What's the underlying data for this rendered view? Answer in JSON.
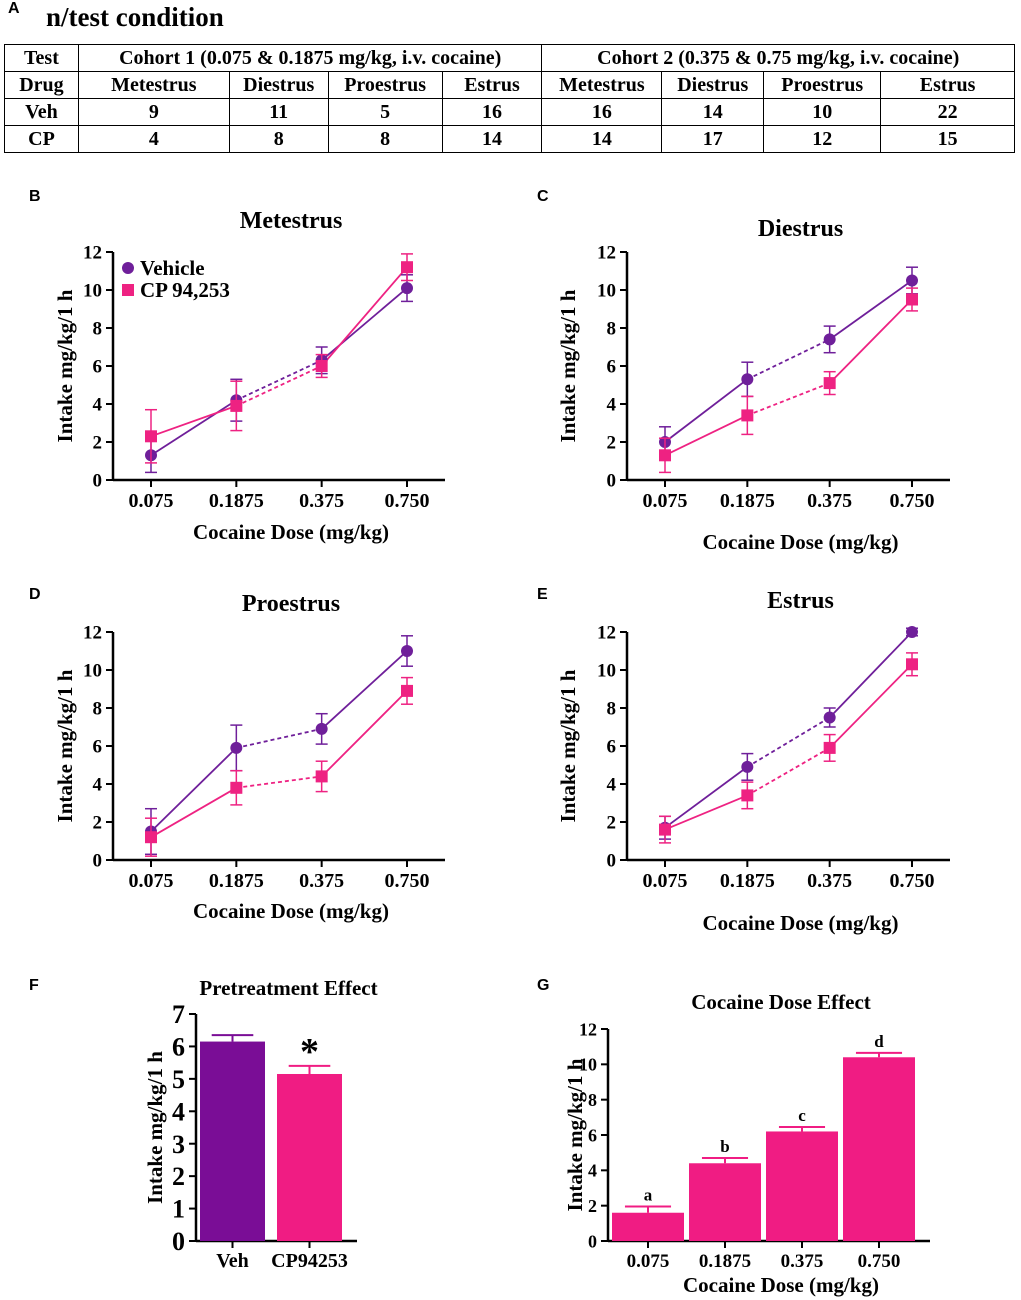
{
  "colors": {
    "vehicle": "#6f1f9a",
    "cp": "#ee2282",
    "veh_bar": "#7a0d96",
    "cp_bar": "#f01c83"
  },
  "panels": {
    "A": "A",
    "B": "B",
    "C": "C",
    "D": "D",
    "E": "E",
    "F": "F",
    "G": "G"
  },
  "table": {
    "title": "n/test condition",
    "corner_top": "Test",
    "corner_bottom": "Drug",
    "cohort1": "Cohort 1 (0.075 & 0.1875 mg/kg, i.v. cocaine)",
    "cohort2": "Cohort 2 (0.375 & 0.75 mg/kg, i.v. cocaine)",
    "phases": [
      "Metestrus",
      "Diestrus",
      "Proestrus",
      "Estrus",
      "Metestrus",
      "Diestrus",
      "Proestrus",
      "Estrus"
    ],
    "rows": [
      {
        "drug": "Veh",
        "values": [
          "9",
          "11",
          "5",
          "16",
          "16",
          "14",
          "10",
          "22"
        ]
      },
      {
        "drug": "CP",
        "values": [
          "4",
          "8",
          "8",
          "14",
          "14",
          "17",
          "12",
          "15"
        ]
      }
    ]
  },
  "chart_data": [
    {
      "id": "B",
      "type": "line",
      "title": "Metestrus",
      "xlabel": "Cocaine Dose (mg/kg)",
      "ylabel": "Intake mg/kg/1 h",
      "categories": [
        "0.075",
        "0.1875",
        "0.375",
        "0.750"
      ],
      "ylim": [
        0,
        12
      ],
      "yticks": [
        0,
        2,
        4,
        6,
        8,
        10,
        12
      ],
      "legend": [
        "Vehicle",
        "CP 94,253"
      ],
      "series": [
        {
          "name": "Vehicle",
          "values": [
            1.3,
            4.2,
            6.3,
            10.1
          ],
          "errors": [
            0.9,
            1.1,
            0.7,
            0.7
          ]
        },
        {
          "name": "CP 94,253",
          "values": [
            2.3,
            3.9,
            6.0,
            11.2
          ],
          "errors": [
            1.4,
            1.3,
            0.6,
            0.7
          ]
        }
      ]
    },
    {
      "id": "C",
      "type": "line",
      "title": "Diestrus",
      "xlabel": "Cocaine Dose (mg/kg)",
      "ylabel": "Intake mg/kg/1 h",
      "categories": [
        "0.075",
        "0.1875",
        "0.375",
        "0.750"
      ],
      "ylim": [
        0,
        12
      ],
      "yticks": [
        0,
        2,
        4,
        6,
        8,
        10,
        12
      ],
      "series": [
        {
          "name": "Vehicle",
          "values": [
            2.0,
            5.3,
            7.4,
            10.5
          ],
          "errors": [
            0.8,
            0.9,
            0.7,
            0.7
          ]
        },
        {
          "name": "CP 94,253",
          "values": [
            1.3,
            3.4,
            5.1,
            9.5
          ],
          "errors": [
            0.9,
            1.0,
            0.6,
            0.6
          ]
        }
      ]
    },
    {
      "id": "D",
      "type": "line",
      "title": "Proestrus",
      "xlabel": "Cocaine Dose (mg/kg)",
      "ylabel": "Intake mg/kg/1 h",
      "categories": [
        "0.075",
        "0.1875",
        "0.375",
        "0.750"
      ],
      "ylim": [
        0,
        12
      ],
      "yticks": [
        0,
        2,
        4,
        6,
        8,
        10,
        12
      ],
      "series": [
        {
          "name": "Vehicle",
          "values": [
            1.5,
            5.9,
            6.9,
            11.0
          ],
          "errors": [
            1.2,
            1.2,
            0.8,
            0.8
          ]
        },
        {
          "name": "CP 94,253",
          "values": [
            1.2,
            3.8,
            4.4,
            8.9
          ],
          "errors": [
            1.0,
            0.9,
            0.8,
            0.7
          ]
        }
      ]
    },
    {
      "id": "E",
      "type": "line",
      "title": "Estrus",
      "xlabel": "Cocaine Dose (mg/kg)",
      "ylabel": "Intake mg/kg/1 h",
      "categories": [
        "0.075",
        "0.1875",
        "0.375",
        "0.750"
      ],
      "ylim": [
        0,
        12
      ],
      "yticks": [
        0,
        2,
        4,
        6,
        8,
        10,
        12
      ],
      "series": [
        {
          "name": "Vehicle",
          "values": [
            1.7,
            4.9,
            7.5,
            12.0
          ],
          "errors": [
            0.6,
            0.7,
            0.5,
            0.2
          ]
        },
        {
          "name": "CP 94,253",
          "values": [
            1.6,
            3.4,
            5.9,
            10.3
          ],
          "errors": [
            0.7,
            0.7,
            0.7,
            0.6
          ]
        }
      ]
    },
    {
      "id": "F",
      "type": "bar",
      "title": "Pretreatment Effect",
      "xlabel": "",
      "ylabel": "Intake mg/kg/1 h",
      "categories": [
        "Veh",
        "CP94253"
      ],
      "values": [
        6.15,
        5.15
      ],
      "errors": [
        0.2,
        0.25
      ],
      "annotations": [
        "",
        "*"
      ],
      "ylim": [
        0,
        7
      ],
      "yticks": [
        0,
        1,
        2,
        3,
        4,
        5,
        6,
        7
      ]
    },
    {
      "id": "G",
      "type": "bar",
      "title": "Cocaine Dose Effect",
      "xlabel": "Cocaine Dose (mg/kg)",
      "ylabel": "Intake mg/kg/1 h",
      "categories": [
        "0.075",
        "0.1875",
        "0.375",
        "0.750"
      ],
      "values": [
        1.6,
        4.4,
        6.2,
        10.4
      ],
      "errors": [
        0.35,
        0.3,
        0.25,
        0.25
      ],
      "annotations": [
        "a",
        "b",
        "c",
        "d"
      ],
      "ylim": [
        0,
        12
      ],
      "yticks": [
        0,
        2,
        4,
        6,
        8,
        10,
        12
      ]
    }
  ]
}
